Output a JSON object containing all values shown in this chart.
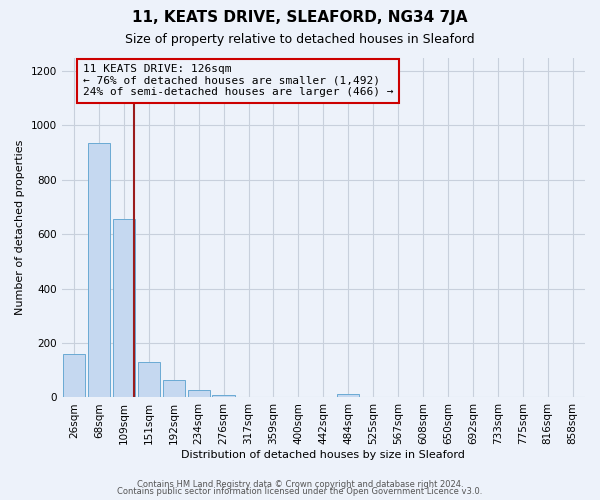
{
  "title": "11, KEATS DRIVE, SLEAFORD, NG34 7JA",
  "subtitle": "Size of property relative to detached houses in Sleaford",
  "xlabel": "Distribution of detached houses by size in Sleaford",
  "ylabel": "Number of detached properties",
  "footer_line1": "Contains HM Land Registry data © Crown copyright and database right 2024.",
  "footer_line2": "Contains public sector information licensed under the Open Government Licence v3.0.",
  "bin_labels": [
    "26sqm",
    "68sqm",
    "109sqm",
    "151sqm",
    "192sqm",
    "234sqm",
    "276sqm",
    "317sqm",
    "359sqm",
    "400sqm",
    "442sqm",
    "484sqm",
    "525sqm",
    "567sqm",
    "608sqm",
    "650sqm",
    "692sqm",
    "733sqm",
    "775sqm",
    "816sqm",
    "858sqm"
  ],
  "bar_heights": [
    160,
    935,
    655,
    130,
    63,
    28,
    10,
    3,
    0,
    0,
    0,
    12,
    0,
    0,
    0,
    0,
    0,
    0,
    0,
    0,
    0
  ],
  "bar_color": "#c5d8f0",
  "bar_edge_color": "#6aaad4",
  "property_line_color": "#9b1c1c",
  "property_line_x": 2.42,
  "ylim": [
    0,
    1250
  ],
  "yticks": [
    0,
    200,
    400,
    600,
    800,
    1000,
    1200
  ],
  "annotation_title": "11 KEATS DRIVE: 126sqm",
  "annotation_line1": "← 76% of detached houses are smaller (1,492)",
  "annotation_line2": "24% of semi-detached houses are larger (466) →",
  "annotation_box_color": "#cc0000",
  "background_color": "#edf2fa",
  "grid_color": "#c8d0dc",
  "title_fontsize": 11,
  "subtitle_fontsize": 9,
  "annotation_fontsize": 8,
  "axis_label_fontsize": 8,
  "tick_fontsize": 7.5,
  "footer_fontsize": 6
}
